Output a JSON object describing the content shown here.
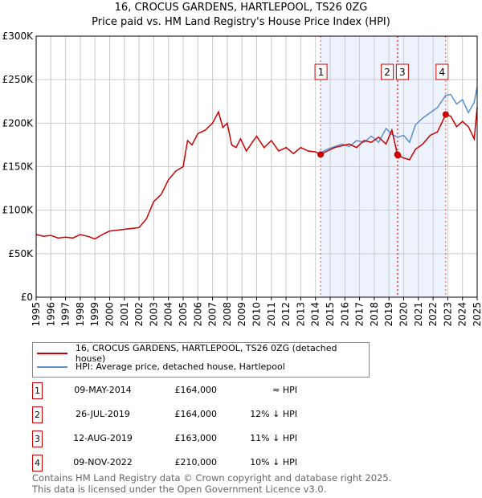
{
  "chart_data": {
    "type": "line",
    "title": "16, CROCUS GARDENS, HARTLEPOOL, TS26 0ZG",
    "subtitle": "Price paid vs. HM Land Registry's House Price Index (HPI)",
    "xlim": [
      1995,
      2025
    ],
    "ylim": [
      0,
      300000
    ],
    "x_ticks": [
      "1995",
      "1996",
      "1997",
      "1998",
      "1999",
      "2000",
      "2001",
      "2002",
      "2003",
      "2004",
      "2005",
      "2006",
      "2007",
      "2008",
      "2009",
      "2010",
      "2011",
      "2012",
      "2013",
      "2014",
      "2015",
      "2016",
      "2017",
      "2018",
      "2019",
      "2020",
      "2021",
      "2022",
      "2023",
      "2024",
      "2025"
    ],
    "y_ticks": [
      {
        "v": 0,
        "label": "£0"
      },
      {
        "v": 50000,
        "label": "£50K"
      },
      {
        "v": 100000,
        "label": "£100K"
      },
      {
        "v": 150000,
        "label": "£150K"
      },
      {
        "v": 200000,
        "label": "£200K"
      },
      {
        "v": 250000,
        "label": "£250K"
      },
      {
        "v": 300000,
        "label": "£300K"
      }
    ],
    "grid": true,
    "series": [
      {
        "name": "16, CROCUS GARDENS, HARTLEPOOL, TS26 0ZG (detached house)",
        "color": "#cc0000",
        "x": [
          1995,
          1995.5,
          1996,
          1996.5,
          1997,
          1997.5,
          1998,
          1998.5,
          1999,
          1999.5,
          2000,
          2000.5,
          2001,
          2001.5,
          2002,
          2002.5,
          2003,
          2003.5,
          2004,
          2004.5,
          2005,
          2005.3,
          2005.6,
          2006,
          2006.5,
          2007,
          2007.4,
          2007.7,
          2008,
          2008.3,
          2008.6,
          2008.9,
          2009.3,
          2009.7,
          2010,
          2010.5,
          2011,
          2011.5,
          2012,
          2012.5,
          2013,
          2013.5,
          2014,
          2014.35,
          2014.8,
          2015.3,
          2015.8,
          2016.3,
          2016.8,
          2017.3,
          2017.8,
          2018.3,
          2018.8,
          2019.2,
          2019.57,
          2019.61,
          2020,
          2020.4,
          2020.8,
          2021.3,
          2021.8,
          2022.3,
          2022.86,
          2023.2,
          2023.6,
          2024,
          2024.4,
          2024.8,
          2025
        ],
        "y": [
          72000,
          70000,
          71000,
          68000,
          69000,
          68000,
          72000,
          70000,
          67000,
          72000,
          76000,
          77000,
          78000,
          79000,
          80000,
          90000,
          110000,
          118000,
          135000,
          145000,
          150000,
          180000,
          175000,
          188000,
          192000,
          200000,
          213000,
          195000,
          200000,
          175000,
          172000,
          182000,
          168000,
          178000,
          185000,
          172000,
          180000,
          168000,
          172000,
          165000,
          172000,
          168000,
          167000,
          164000,
          168000,
          172000,
          174000,
          176000,
          172000,
          180000,
          178000,
          184000,
          176000,
          192000,
          164000,
          163000,
          160000,
          158000,
          170000,
          176000,
          186000,
          190000,
          210000,
          208000,
          196000,
          202000,
          196000,
          182000,
          218000
        ]
      },
      {
        "name": "HPI: Average price, detached house, Hartlepool",
        "color": "#5b8fd1",
        "x": [
          2014.35,
          2014.8,
          2015.3,
          2015.8,
          2016.3,
          2016.8,
          2017.3,
          2017.8,
          2018.3,
          2018.8,
          2019.2,
          2019.6,
          2020,
          2020.4,
          2020.8,
          2021.3,
          2021.8,
          2022.3,
          2022.86,
          2023.2,
          2023.6,
          2024,
          2024.4,
          2024.8,
          2025
        ],
        "y": [
          166000,
          170000,
          173000,
          176000,
          173000,
          180000,
          178000,
          185000,
          178000,
          194000,
          187000,
          184000,
          186000,
          178000,
          198000,
          206000,
          212000,
          218000,
          232000,
          233000,
          222000,
          227000,
          212000,
          224000,
          242000
        ]
      }
    ],
    "sales": [
      {
        "label": "1",
        "x": 2014.35,
        "y": 164000,
        "date": "09-MAY-2014",
        "price": "£164,000",
        "delta": "≈ HPI"
      },
      {
        "label": "2",
        "x": 2019.57,
        "y": 164000,
        "date": "26-JUL-2019",
        "price": "£164,000",
        "delta": "12% ↓ HPI"
      },
      {
        "label": "3",
        "x": 2019.61,
        "y": 163000,
        "date": "12-AUG-2019",
        "price": "£163,000",
        "delta": "11% ↓ HPI"
      },
      {
        "label": "4",
        "x": 2022.86,
        "y": 210000,
        "date": "09-NOV-2022",
        "price": "£210,000",
        "delta": "10% ↓ HPI"
      }
    ]
  },
  "footer": {
    "line1": "Contains HM Land Registry data © Crown copyright and database right 2025.",
    "line2": "This data is licensed under the Open Government Licence v3.0."
  }
}
